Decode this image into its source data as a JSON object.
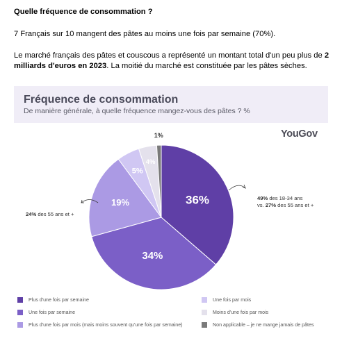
{
  "intro": {
    "heading": "Quelle fréquence de consommation ?",
    "p1": "7 Français sur 10 mangent des pâtes au moins une fois par semaine (70%).",
    "p2_a": "Le marché français des pâtes et couscous a représenté un montant total d'un peu plus de ",
    "p2_b": "2 milliards d'euros en 2023",
    "p2_c": ". La moitié du marché est constituée par les pâtes sèches."
  },
  "card": {
    "title": "Fréquence de consommation",
    "subtitle": "De manière générale, à quelle fréquence mangez-vous des pâtes ? %"
  },
  "brand": "YouGov",
  "annotations": {
    "right_a_bold": "49%",
    "right_a": " des 18-34 ans",
    "right_b_pre": "vs. ",
    "right_b_bold": "27%",
    "right_b": " des 55 ans et +",
    "left_bold": "24%",
    "left": " des 55 ans et +"
  },
  "chart_data": {
    "type": "pie",
    "title": "Fréquence de consommation",
    "subtitle": "De manière générale, à quelle fréquence mangez-vous des pâtes ? %",
    "unit": "%",
    "slices": [
      {
        "label": "Plus d'une fois par semaine",
        "value": 36,
        "display": "36%",
        "color": "#5f3fa6"
      },
      {
        "label": "Une fois par semaine",
        "value": 34,
        "display": "34%",
        "color": "#7b5fc7"
      },
      {
        "label": "Plus d'une fois par mois (mais moins souvent qu'une fois par semaine)",
        "value": 19,
        "display": "19%",
        "color": "#ab9ae4"
      },
      {
        "label": "Une fois par mois",
        "value": 5,
        "display": "5%",
        "color": "#d0c7f3"
      },
      {
        "label": "Moins d'une fois par mois",
        "value": 4,
        "display": "4%",
        "color": "#e4e1ec"
      },
      {
        "label": "Non applicable – je ne mange jamais de pâtes",
        "value": 1,
        "display": "1%",
        "color": "#7a7a7a"
      }
    ],
    "legend_placement": "bottom"
  }
}
